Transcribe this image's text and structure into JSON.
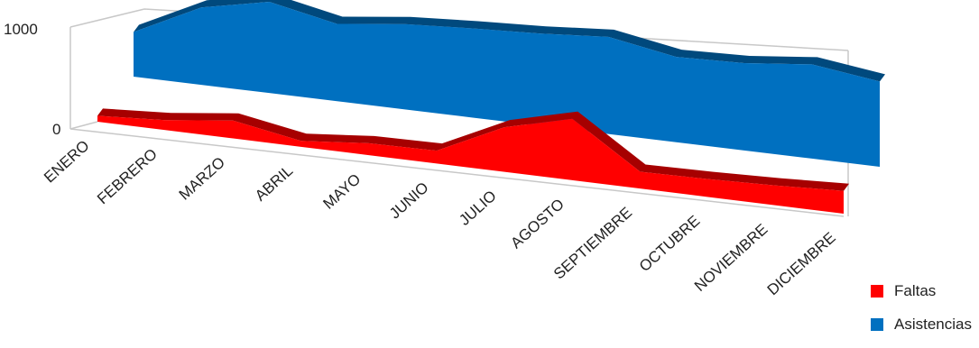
{
  "chart_data": {
    "type": "area",
    "three_d": true,
    "categories": [
      "ENERO",
      "FEBRERO",
      "MARZO",
      "ABRIL",
      "MAYO",
      "JUNIO",
      "JULIO",
      "AGOSTO",
      "SEPTIEMBRE",
      "OCTUBRE",
      "NOVIEMBRE",
      "DICIEMBRE"
    ],
    "series": [
      {
        "name": "Faltas",
        "color": "#ff0000",
        "values": [
          60,
          100,
          180,
          60,
          120,
          130,
          450,
          620,
          170,
          180,
          200,
          230
        ]
      },
      {
        "name": "Asistencias",
        "color": "#0070c0",
        "values": [
          450,
          780,
          920,
          780,
          860,
          900,
          930,
          980,
          860,
          880,
          950,
          860
        ]
      }
    ],
    "y_ticks": [
      "0",
      "1000"
    ],
    "ylim": [
      0,
      1000
    ],
    "grid": false,
    "legend_position": "bottom-right"
  }
}
